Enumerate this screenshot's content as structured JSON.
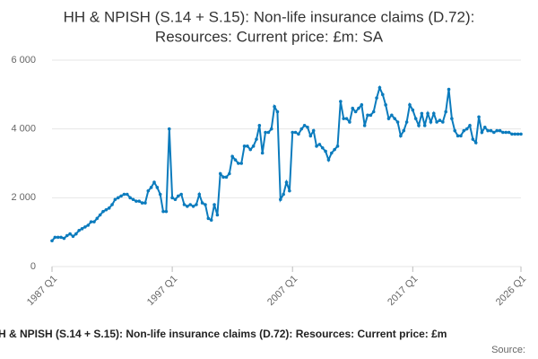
{
  "chart_data": {
    "type": "line",
    "title": [
      "HH & NPISH (S.14 + S.15): Non-life insurance claims (D.72):",
      "Resources: Current price: £m: SA"
    ],
    "footnote": "H & NPISH (S.14 + S.15): Non-life insurance claims (D.72): Resources: Current price: £m",
    "source": "Source:",
    "categories": [
      "1987 Q1",
      null,
      null,
      null,
      null,
      null,
      null,
      null,
      null,
      null,
      null,
      null,
      null,
      null,
      null,
      null,
      null,
      null,
      null,
      null,
      null,
      null,
      null,
      null,
      null,
      null,
      null,
      null,
      null,
      null,
      null,
      null,
      null,
      null,
      null,
      null,
      null,
      null,
      null,
      null,
      "1997 Q1",
      null,
      null,
      null,
      null,
      null,
      null,
      null,
      null,
      null,
      null,
      null,
      null,
      null,
      null,
      null,
      null,
      null,
      null,
      null,
      null,
      null,
      null,
      null,
      null,
      null,
      null,
      null,
      null,
      null,
      null,
      null,
      null,
      null,
      null,
      null,
      null,
      null,
      null,
      null,
      "2007 Q1",
      null,
      null,
      null,
      null,
      null,
      null,
      null,
      null,
      null,
      null,
      null,
      null,
      null,
      null,
      null,
      null,
      null,
      null,
      null,
      null,
      null,
      null,
      null,
      null,
      null,
      null,
      null,
      null,
      null,
      null,
      null,
      null,
      null,
      null,
      null,
      null,
      null,
      null,
      null,
      "2017 Q1",
      null,
      null,
      null,
      null,
      null,
      null,
      null,
      null,
      null,
      null,
      null,
      null,
      null,
      null,
      null,
      null,
      null,
      null,
      null,
      null,
      null,
      null,
      null,
      null,
      null,
      null,
      null,
      null,
      null,
      null,
      null,
      null,
      null,
      null,
      null,
      "2026 Q1"
    ],
    "values": [
      750,
      850,
      850,
      850,
      820,
      900,
      950,
      880,
      950,
      1050,
      1100,
      1150,
      1200,
      1300,
      1300,
      1400,
      1500,
      1600,
      1650,
      1700,
      1800,
      1950,
      2000,
      2050,
      2100,
      2100,
      2000,
      1950,
      1900,
      1900,
      1850,
      1850,
      2200,
      2300,
      2450,
      2300,
      2100,
      1600,
      1600,
      4000,
      2000,
      1950,
      2050,
      2100,
      1800,
      1750,
      1800,
      1750,
      1800,
      2100,
      1850,
      1800,
      1400,
      1350,
      1800,
      1500,
      2700,
      2600,
      2600,
      2700,
      3200,
      3100,
      3000,
      3000,
      3500,
      3500,
      3400,
      3500,
      3700,
      4100,
      3300,
      3900,
      3900,
      4000,
      4650,
      4500,
      1950,
      2100,
      2450,
      2200,
      3900,
      3900,
      3850,
      4000,
      4100,
      4050,
      3800,
      3950,
      3500,
      3550,
      3450,
      3350,
      3100,
      3300,
      3400,
      3500,
      4800,
      4300,
      4300,
      4200,
      4600,
      4500,
      4600,
      4700,
      4100,
      4400,
      4400,
      4500,
      4900,
      5200,
      5000,
      4700,
      4300,
      4400,
      4300,
      4200,
      3800,
      3950,
      4200,
      4700,
      4550,
      4300,
      4100,
      4450,
      4100,
      4450,
      4200,
      4450,
      4200,
      4250,
      4200,
      4500,
      5150,
      4300,
      3950,
      3800,
      3800,
      3950,
      4000,
      4100,
      3700,
      3600,
      4350,
      3900,
      4050,
      3950,
      3950,
      3900,
      3950,
      3950,
      3900,
      3900,
      3900,
      3850,
      3850,
      3850,
      3850
    ],
    "color": "#0b7bbd",
    "ylim": [
      0,
      6000
    ],
    "yticks": [
      0,
      {
        "value": 2000,
        "label": "2 000"
      },
      {
        "value": 4000,
        "label": "4 000"
      },
      {
        "value": 6000,
        "label": "6 000"
      }
    ],
    "grid": true
  }
}
